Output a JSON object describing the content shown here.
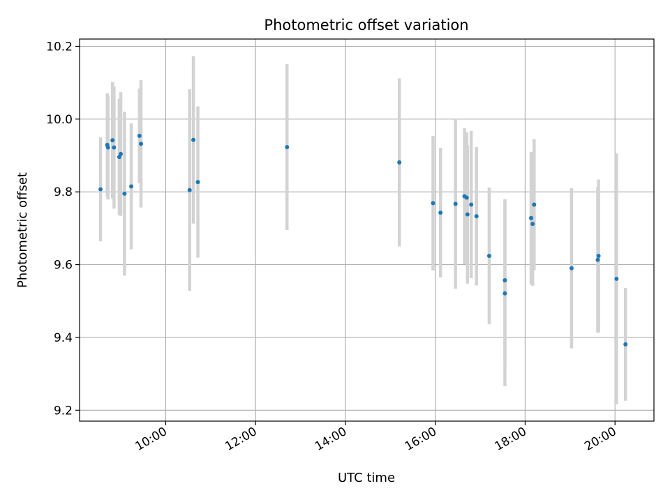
{
  "chart_data": {
    "type": "scatter",
    "title": "Photometric offset variation",
    "xlabel": "UTC time",
    "ylabel": "Photometric offset",
    "x_axis": {
      "kind": "time",
      "unit": "hours UTC",
      "range": [
        "08:05",
        "20:52"
      ]
    },
    "ylim": [
      9.17,
      10.22
    ],
    "x_ticks": [
      "10:00",
      "12:00",
      "14:00",
      "16:00",
      "18:00",
      "20:00"
    ],
    "y_ticks": [
      "9.2",
      "9.4",
      "9.6",
      "9.8",
      "10.0",
      "10.2"
    ],
    "grid": true,
    "marker_color": "#1f77b4",
    "errorbar_color": "#d3d3d3",
    "points": [
      {
        "x": "08:33",
        "y": 9.807,
        "err": 0.143
      },
      {
        "x": "08:42",
        "y": 9.929,
        "err": 0.142
      },
      {
        "x": "08:43",
        "y": 9.922,
        "err": 0.143
      },
      {
        "x": "08:49",
        "y": 9.942,
        "err": 0.16
      },
      {
        "x": "08:51",
        "y": 9.922,
        "err": 0.168
      },
      {
        "x": "08:58",
        "y": 9.896,
        "err": 0.16
      },
      {
        "x": "09:00",
        "y": 9.904,
        "err": 0.17
      },
      {
        "x": "09:05",
        "y": 9.795,
        "err": 0.225
      },
      {
        "x": "09:14",
        "y": 9.815,
        "err": 0.173
      },
      {
        "x": "09:25",
        "y": 9.954,
        "err": 0.13
      },
      {
        "x": "09:27",
        "y": 9.932,
        "err": 0.175
      },
      {
        "x": "10:32",
        "y": 9.805,
        "err": 0.277
      },
      {
        "x": "10:37",
        "y": 9.943,
        "err": 0.23
      },
      {
        "x": "10:43",
        "y": 9.827,
        "err": 0.208
      },
      {
        "x": "12:42",
        "y": 9.923,
        "err": 0.228
      },
      {
        "x": "15:12",
        "y": 9.881,
        "err": 0.231
      },
      {
        "x": "15:57",
        "y": 9.769,
        "err": 0.185
      },
      {
        "x": "16:07",
        "y": 9.743,
        "err": 0.178
      },
      {
        "x": "16:27",
        "y": 9.767,
        "err": 0.233
      },
      {
        "x": "16:39",
        "y": 9.788,
        "err": 0.187
      },
      {
        "x": "16:42",
        "y": 9.784,
        "err": 0.18
      },
      {
        "x": "16:43",
        "y": 9.738,
        "err": 0.19
      },
      {
        "x": "16:48",
        "y": 9.765,
        "err": 0.202
      },
      {
        "x": "16:55",
        "y": 9.733,
        "err": 0.19
      },
      {
        "x": "17:12",
        "y": 9.624,
        "err": 0.188
      },
      {
        "x": "17:33",
        "y": 9.557,
        "err": 0.223
      },
      {
        "x": "17:33",
        "y": 9.521,
        "err": 0.255
      },
      {
        "x": "18:08",
        "y": 9.728,
        "err": 0.182
      },
      {
        "x": "18:10",
        "y": 9.712,
        "err": 0.17
      },
      {
        "x": "18:12",
        "y": 9.765,
        "err": 0.18
      },
      {
        "x": "19:02",
        "y": 9.59,
        "err": 0.22
      },
      {
        "x": "19:37",
        "y": 9.613,
        "err": 0.2
      },
      {
        "x": "19:38",
        "y": 9.624,
        "err": 0.21
      },
      {
        "x": "20:02",
        "y": 9.561,
        "err": 0.345
      },
      {
        "x": "20:14",
        "y": 9.381,
        "err": 0.155
      }
    ]
  }
}
